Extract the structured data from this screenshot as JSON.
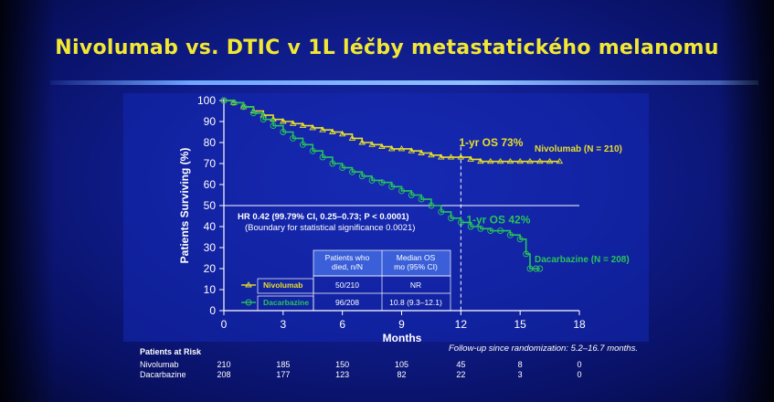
{
  "slide": {
    "title": "Nivolumab vs. DTIC v 1L léčby metastatického melanomu"
  },
  "colors": {
    "nivolumab": "#e8df2a",
    "dacarbazine": "#27c45a",
    "background": "#0f1c8a",
    "title": "#f2e834"
  },
  "chart_data": {
    "type": "line",
    "ylabel": "Patients Surviving (%)",
    "xlabel": "Months",
    "xlim": [
      0,
      18
    ],
    "ylim": [
      0,
      100
    ],
    "x_ticks": [
      0,
      3,
      6,
      9,
      12,
      15,
      18
    ],
    "y_ticks": [
      0,
      10,
      20,
      30,
      40,
      50,
      60,
      70,
      80,
      90,
      100
    ],
    "reference_lines": {
      "y": 50,
      "x": 12
    },
    "series": [
      {
        "name": "Nivolumab (N = 210)",
        "legend": "Nivolumab",
        "x": [
          0,
          0.5,
          1,
          1.5,
          2,
          2.5,
          3,
          3.5,
          4,
          4.5,
          5,
          5.5,
          6,
          6.5,
          7,
          7.5,
          8,
          8.5,
          9,
          9.5,
          10,
          10.5,
          11,
          11.5,
          12,
          12.5,
          13,
          13.5,
          14,
          14.5,
          15,
          15.5,
          16,
          16.5,
          17
        ],
        "y": [
          100,
          99,
          97,
          95,
          93,
          91,
          90,
          89,
          88,
          87,
          86,
          85,
          84,
          82,
          80,
          79,
          78,
          77,
          77,
          76,
          75,
          74,
          73,
          73,
          73,
          72,
          71,
          71,
          71,
          71,
          71,
          71,
          71,
          71,
          71
        ]
      },
      {
        "name": "Dacarbazine (N = 208)",
        "legend": "Dacarbazine",
        "x": [
          0,
          0.5,
          1,
          1.5,
          2,
          2.5,
          3,
          3.5,
          4,
          4.5,
          5,
          5.5,
          6,
          6.5,
          7,
          7.5,
          8,
          8.5,
          9,
          9.5,
          10,
          10.5,
          11,
          11.5,
          12,
          12.5,
          13,
          13.5,
          14,
          14.5,
          15,
          15.3,
          15.5,
          15.8,
          16
        ],
        "y": [
          100,
          99,
          97,
          94,
          91,
          88,
          85,
          82,
          79,
          76,
          73,
          70,
          68,
          66,
          64,
          62,
          61,
          59,
          57,
          55,
          53,
          50,
          47,
          44,
          42,
          40,
          39,
          38,
          38,
          36,
          34,
          27,
          20,
          20,
          20
        ]
      }
    ],
    "annotations": [
      {
        "text": "1-yr OS 73%",
        "x": 12,
        "y": 73
      },
      {
        "text": "1-yr OS 42%",
        "x": 12,
        "y": 42
      },
      {
        "text": "Nivolumab (N = 210)",
        "x": 17,
        "y": 71
      },
      {
        "text": "Dacarbazine (N = 208)",
        "x": 16,
        "y": 20
      }
    ],
    "hr_text": "HR 0.42 (99.79% CI, 0.25–0.73; P < 0.0001)",
    "boundary_text": "(Boundary for statistical significance 0.0021)",
    "table": {
      "headers": [
        "Patients who died, n/N",
        "Median OS mo (95% CI)"
      ],
      "rows": [
        {
          "label": "Nivolumab",
          "died": "50/210",
          "median": "NR"
        },
        {
          "label": "Dacarbazine",
          "died": "96/208",
          "median": "10.8 (9.3–12.1)"
        }
      ]
    },
    "followup": "Follow-up since randomization: 5.2–16.7 months.",
    "at_risk": {
      "title": "Patients at Risk",
      "rows": [
        {
          "label": "Nivolumab",
          "values": [
            210,
            185,
            150,
            105,
            45,
            8,
            0
          ]
        },
        {
          "label": "Dacarbazine",
          "values": [
            208,
            177,
            123,
            82,
            22,
            3,
            0
          ]
        }
      ]
    }
  }
}
